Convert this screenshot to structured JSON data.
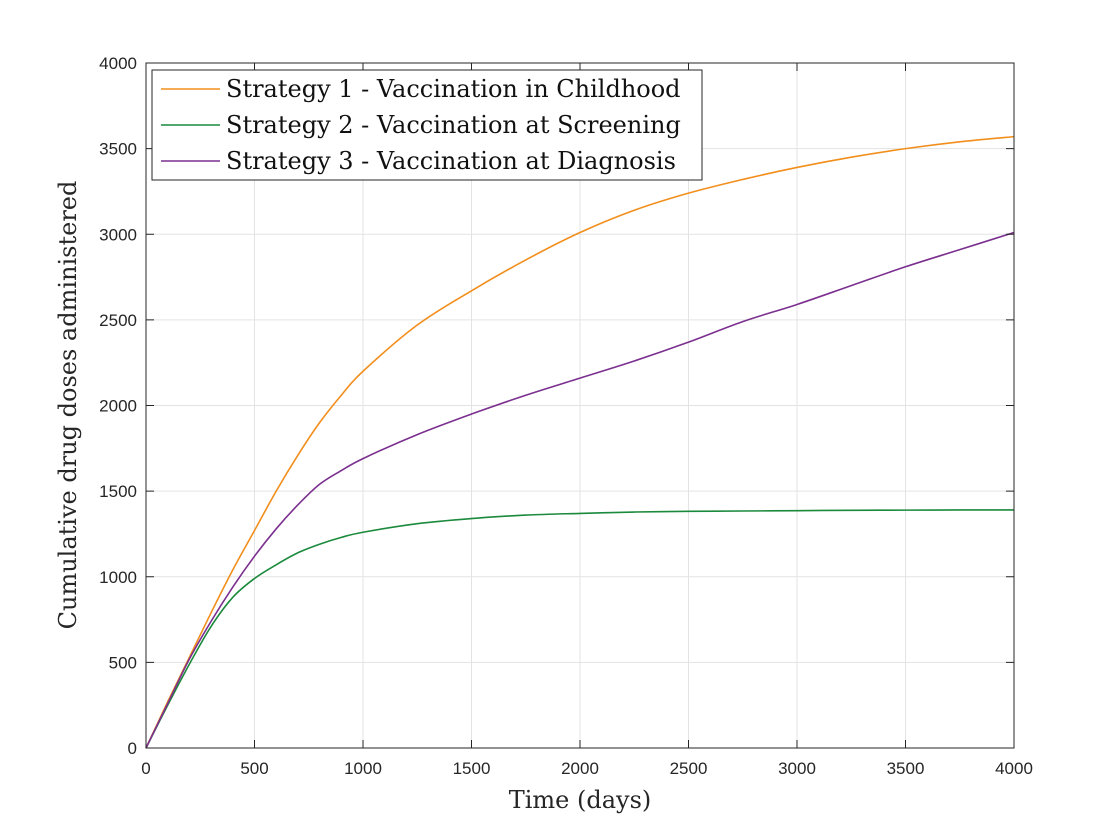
{
  "chart_data": {
    "type": "line",
    "xlabel": "Time (days)",
    "ylabel": "Cumulative drug doses administered",
    "xlim": [
      0,
      4000
    ],
    "ylim": [
      0,
      4000
    ],
    "xticks": [
      0,
      500,
      1000,
      1500,
      2000,
      2500,
      3000,
      3500,
      4000
    ],
    "yticks": [
      0,
      500,
      1000,
      1500,
      2000,
      2500,
      3000,
      3500,
      4000
    ],
    "grid": true,
    "legend_position": "top-left",
    "x": [
      0,
      100,
      200,
      300,
      400,
      500,
      600,
      700,
      800,
      900,
      1000,
      1250,
      1500,
      1750,
      2000,
      2250,
      2500,
      2750,
      3000,
      3250,
      3500,
      3750,
      4000
    ],
    "series": [
      {
        "name": "Strategy 1 - Vaccination in Childhood",
        "color": "#f28e1c",
        "values": [
          0,
          270,
          530,
          790,
          1040,
          1270,
          1500,
          1710,
          1900,
          2060,
          2200,
          2470,
          2670,
          2850,
          3010,
          3140,
          3240,
          3320,
          3390,
          3450,
          3500,
          3540,
          3570
        ]
      },
      {
        "name": "Strategy 2 - Vaccination at Screening",
        "color": "#1b8a3c",
        "values": [
          0,
          250,
          490,
          710,
          880,
          990,
          1070,
          1140,
          1190,
          1230,
          1260,
          1310,
          1340,
          1360,
          1370,
          1378,
          1382,
          1384,
          1386,
          1388,
          1389,
          1390,
          1390
        ]
      },
      {
        "name": "Strategy 3 - Vaccination at Diagnosis",
        "color": "#7b2f8f",
        "values": [
          0,
          260,
          520,
          740,
          940,
          1120,
          1280,
          1420,
          1540,
          1620,
          1690,
          1830,
          1950,
          2060,
          2160,
          2260,
          2370,
          2490,
          2590,
          2700,
          2810,
          2910,
          3010
        ]
      }
    ]
  }
}
